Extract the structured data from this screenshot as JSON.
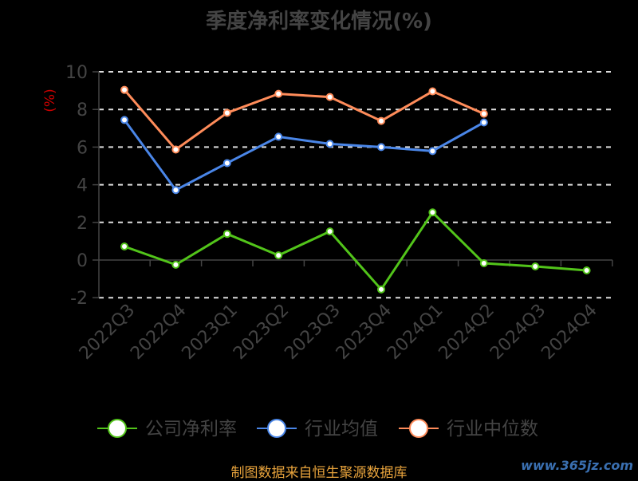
{
  "chart_data": {
    "type": "line",
    "title": "季度净利率变化情况(%)",
    "ylabel": "(%)",
    "ylim": [
      -2,
      10
    ],
    "yticks": [
      -2,
      0,
      2,
      4,
      6,
      8,
      10
    ],
    "grid": true,
    "legend_placement": "bottom",
    "categories": [
      "2022Q3",
      "2022Q4",
      "2023Q1",
      "2023Q2",
      "2023Q3",
      "2023Q4",
      "2024Q1",
      "2024Q2",
      "2024Q3",
      "2024Q4"
    ],
    "series": [
      {
        "name": "公司净利率",
        "color": "#52c41a",
        "values": [
          0.72,
          -0.25,
          1.39,
          0.25,
          1.52,
          -1.56,
          2.53,
          -0.17,
          -0.34,
          -0.55
        ]
      },
      {
        "name": "行业均值",
        "color": "#4a86e8",
        "values": [
          7.44,
          3.72,
          5.15,
          6.55,
          6.17,
          6.0,
          5.79,
          7.31,
          null,
          null
        ]
      },
      {
        "name": "行业中位数",
        "color": "#ff8c5a",
        "values": [
          9.04,
          5.87,
          7.82,
          8.83,
          8.66,
          7.39,
          8.96,
          7.77,
          null,
          null
        ]
      }
    ]
  },
  "footer": "制图数据来自恒生聚源数据库",
  "watermark": "www.365jz.com"
}
